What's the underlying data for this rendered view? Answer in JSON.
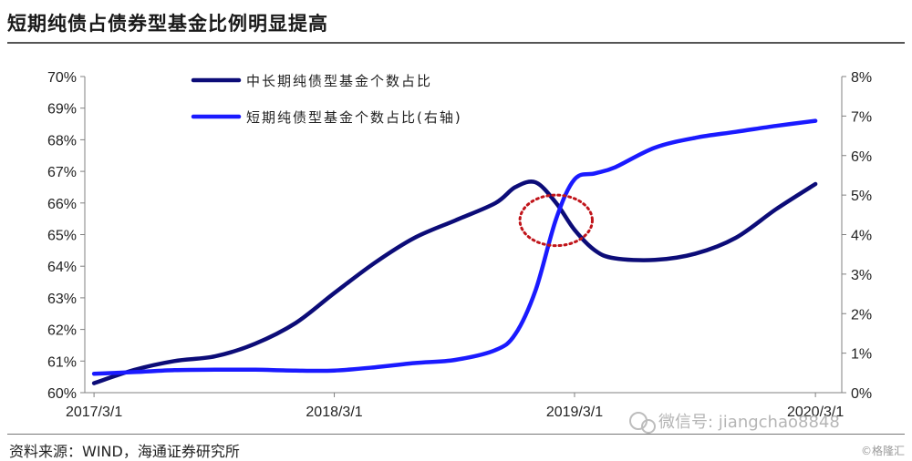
{
  "title": "短期纯债占债券型基金比例明显提高",
  "source": "资料来源：WIND，海通证券研究所",
  "watermark": "微信号: jiangchao8848",
  "corner_mark": "©格隆汇",
  "colors": {
    "series_long": "#0c0c78",
    "series_short": "#1a1aff",
    "ellipse": "#c0141a",
    "axis": "#808080"
  },
  "chart_data": {
    "type": "line",
    "title": "短期纯债占债券型基金比例明显提高",
    "x_tick_labels": [
      "2017/3/1",
      "2018/3/1",
      "2019/3/1",
      "2020/3/1"
    ],
    "x_tick_dates": [
      "2017-03-01",
      "2018-03-01",
      "2019-03-01",
      "2020-03-01"
    ],
    "xlim": [
      "2017-02-15",
      "2020-04-10"
    ],
    "y_left": {
      "ylim": [
        0.6,
        0.7
      ],
      "ticks": [
        "60%",
        "61%",
        "62%",
        "63%",
        "64%",
        "65%",
        "66%",
        "67%",
        "68%",
        "69%",
        "70%"
      ]
    },
    "y_right": {
      "ylim": [
        0.0,
        0.08
      ],
      "ticks": [
        "0%",
        "1%",
        "2%",
        "3%",
        "4%",
        "5%",
        "6%",
        "7%",
        "8%"
      ]
    },
    "grid": false,
    "legend_position": "top-center",
    "series": [
      {
        "name": "中长期纯债型基金个数占比",
        "axis": "left",
        "x": [
          "2017-03-01",
          "2017-05-01",
          "2017-07-01",
          "2017-09-01",
          "2017-11-01",
          "2018-01-01",
          "2018-03-01",
          "2018-05-01",
          "2018-07-01",
          "2018-09-01",
          "2018-11-01",
          "2018-12-01",
          "2019-01-01",
          "2019-02-01",
          "2019-03-01",
          "2019-04-01",
          "2019-05-01",
          "2019-07-01",
          "2019-09-01",
          "2019-11-01",
          "2020-01-01",
          "2020-03-01"
        ],
        "values": [
          0.603,
          0.6072,
          0.61,
          0.6115,
          0.6155,
          0.622,
          0.6315,
          0.641,
          0.649,
          0.6545,
          0.66,
          0.665,
          0.6665,
          0.66,
          0.6515,
          0.645,
          0.6425,
          0.642,
          0.644,
          0.649,
          0.658,
          0.666
        ]
      },
      {
        "name": "短期纯债型基金个数占比(右轴)",
        "axis": "right",
        "x": [
          "2017-03-01",
          "2017-05-01",
          "2017-07-01",
          "2017-09-01",
          "2017-11-01",
          "2018-01-01",
          "2018-03-01",
          "2018-05-01",
          "2018-07-01",
          "2018-09-01",
          "2018-11-01",
          "2018-12-01",
          "2019-01-01",
          "2019-02-01",
          "2019-03-01",
          "2019-04-01",
          "2019-05-01",
          "2019-07-01",
          "2019-09-01",
          "2019-11-01",
          "2020-01-01",
          "2020-03-01"
        ],
        "values": [
          0.0048,
          0.0052,
          0.0057,
          0.0058,
          0.0058,
          0.0056,
          0.0056,
          0.0064,
          0.0075,
          0.0083,
          0.0108,
          0.0148,
          0.026,
          0.044,
          0.054,
          0.0555,
          0.057,
          0.062,
          0.0645,
          0.066,
          0.0675,
          0.0688
        ]
      }
    ],
    "annotations": [
      {
        "type": "dotted-ellipse",
        "x_center": "2019-02-01",
        "y_left_center": 0.6545,
        "x_halfwidth_days": 55,
        "y_left_halfheight": 0.008
      }
    ]
  }
}
